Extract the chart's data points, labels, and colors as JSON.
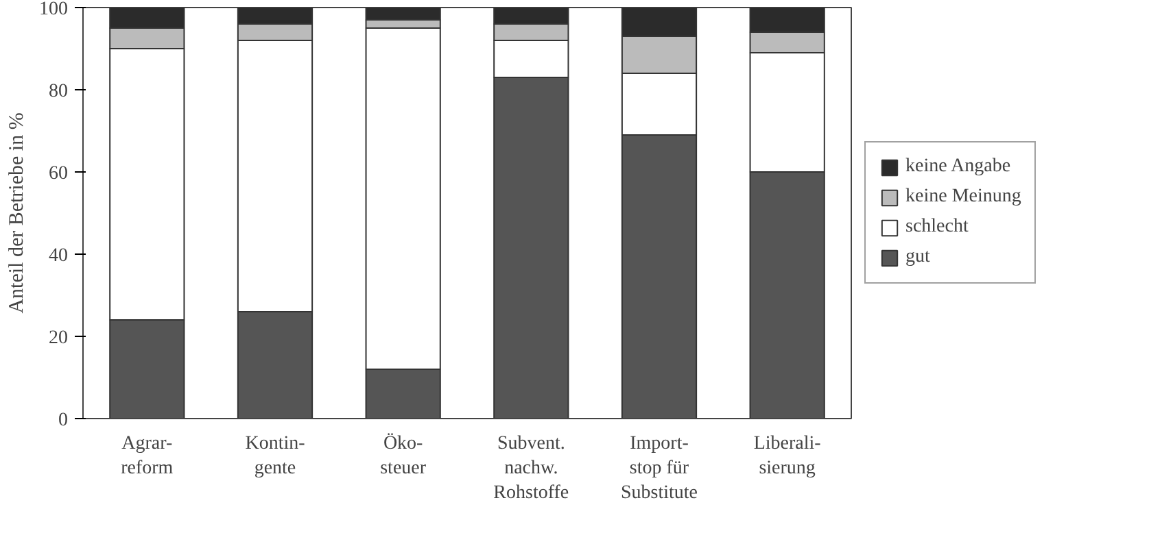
{
  "chart_data": {
    "type": "bar",
    "stacked": true,
    "ylabel": "Anteil der Betriebe in %",
    "categories": [
      "Agrar-\nreform",
      "Kontin-\ngente",
      "Öko-\nsteuer",
      "Subvent.\nnachw.\nRohstoffe",
      "Import-\nstop für\nSubstitute",
      "Liberali-\nsierung"
    ],
    "series": [
      {
        "name": "gut",
        "color": "#555555",
        "values": [
          24,
          26,
          12,
          83,
          69,
          60
        ]
      },
      {
        "name": "schlecht",
        "color": "#ffffff",
        "values": [
          66,
          66,
          83,
          9,
          15,
          29
        ]
      },
      {
        "name": "keine Meinung",
        "color": "#bbbbbb",
        "values": [
          5,
          4,
          2,
          4,
          9,
          5
        ]
      },
      {
        "name": "keine Angabe",
        "color": "#2b2b2b",
        "values": [
          5,
          4,
          3,
          4,
          7,
          6
        ]
      }
    ],
    "ylim": [
      0,
      100
    ],
    "yticks": [
      0,
      20,
      40,
      60,
      80,
      100
    ],
    "grid": false,
    "legend": "right"
  }
}
